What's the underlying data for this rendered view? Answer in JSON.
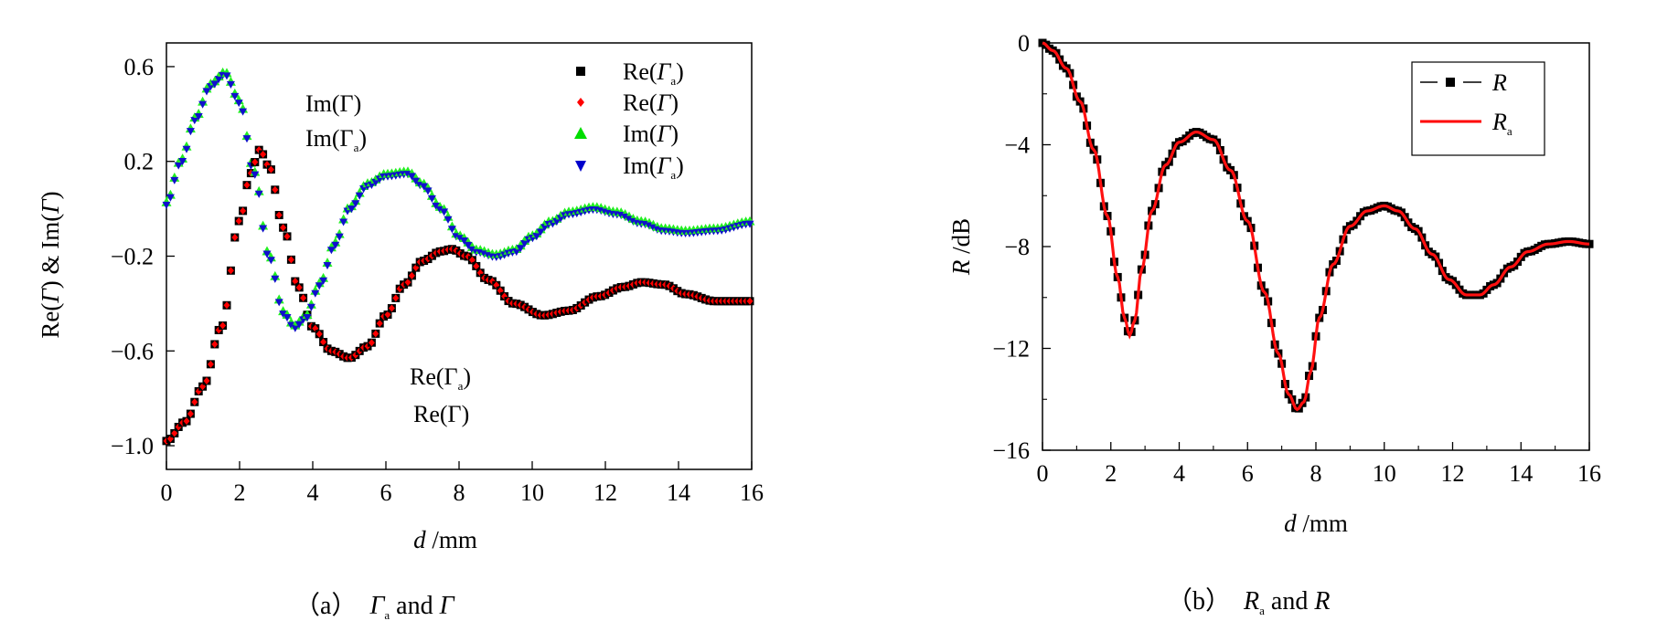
{
  "chart_data": [
    {
      "type": "scatter",
      "panel": "a",
      "caption": {
        "prefix": "（a）",
        "sym1": "Γ",
        "sym1_sub": "a",
        "mid": " and ",
        "sym2": "Γ"
      },
      "xlabel": {
        "sym": "d",
        "unit": " /mm"
      },
      "ylabel": {
        "p1": "Re(",
        "s1": "Γ",
        "p2": ")  & Im(",
        "s2": "Γ",
        "p3": ")"
      },
      "xlim": [
        0,
        16
      ],
      "ylim": [
        -1.1,
        0.7
      ],
      "xticks": [
        "0",
        "2",
        "4",
        "6",
        "8",
        "10",
        "12",
        "14",
        "16"
      ],
      "yticks": [
        {
          "v": 0.6,
          "label": "0.6"
        },
        {
          "v": 0.2,
          "label": "0.2"
        },
        {
          "v": -0.2,
          "label": "−0.2"
        },
        {
          "v": -0.6,
          "label": "−0.6"
        },
        {
          "v": -1.0,
          "label": "−1.0"
        }
      ],
      "legend": [
        {
          "name_pre": "Re(",
          "name_sym": "Γ",
          "name_sub": "a",
          "name_post": ")",
          "marker": "square",
          "color": "#000000"
        },
        {
          "name_pre": "Re(",
          "name_sym": "Γ",
          "name_sub": "",
          "name_post": ")",
          "marker": "diamond",
          "color": "#ff0000"
        },
        {
          "name_pre": "Im(",
          "name_sym": "Γ",
          "name_sub": "",
          "name_post": ")",
          "marker": "triangle-up",
          "color": "#00dd00"
        },
        {
          "name_pre": "Im(",
          "name_sym": "Γ",
          "name_sub": "a",
          "name_post": ")",
          "marker": "triangle-down",
          "color": "#0000cc"
        }
      ],
      "annotations": {
        "im_line1": "Im(Γ)",
        "im_line2": "Im(Γ",
        "im_line2_sub": "a",
        "re_line1": "Re(Γ",
        "re_line1_sub": "a",
        "re_line2": "Re(Γ)"
      },
      "series": [
        {
          "name": "Re",
          "x": [
            0,
            0.5,
            1,
            1.5,
            2,
            2.3,
            2.55,
            2.8,
            3.2,
            3.6,
            4,
            4.5,
            5,
            5.5,
            6,
            6.5,
            7,
            7.5,
            7.8,
            8.2,
            8.8,
            9.5,
            10.3,
            11,
            11.8,
            12.5,
            13,
            13.6,
            14.2,
            15,
            16
          ],
          "y": [
            -0.98,
            -0.9,
            -0.75,
            -0.5,
            -0.05,
            0.15,
            0.25,
            0.18,
            -0.08,
            -0.33,
            -0.5,
            -0.6,
            -0.63,
            -0.58,
            -0.45,
            -0.32,
            -0.22,
            -0.18,
            -0.17,
            -0.2,
            -0.3,
            -0.4,
            -0.45,
            -0.43,
            -0.37,
            -0.33,
            -0.31,
            -0.32,
            -0.36,
            -0.39,
            -0.39
          ]
        },
        {
          "name": "Im",
          "x": [
            0,
            0.4,
            0.8,
            1.2,
            1.6,
            2,
            2.4,
            2.8,
            3.2,
            3.5,
            3.8,
            4.2,
            4.6,
            5,
            5.5,
            6,
            6.6,
            7,
            7.5,
            8,
            8.5,
            9,
            9.5,
            10,
            10.5,
            11,
            11.7,
            12.3,
            13,
            13.6,
            14.2,
            15,
            16
          ],
          "y": [
            0.02,
            0.2,
            0.38,
            0.52,
            0.57,
            0.45,
            0.15,
            -0.2,
            -0.44,
            -0.5,
            -0.46,
            -0.32,
            -0.15,
            0.0,
            0.1,
            0.14,
            0.15,
            0.1,
            0.0,
            -0.12,
            -0.18,
            -0.2,
            -0.18,
            -0.12,
            -0.06,
            -0.02,
            0.0,
            -0.02,
            -0.06,
            -0.09,
            -0.1,
            -0.09,
            -0.06
          ]
        }
      ]
    },
    {
      "type": "line",
      "panel": "b",
      "caption": {
        "prefix": "（b）",
        "sym1": "R",
        "sym1_sub": "a",
        "mid": " and ",
        "sym2": "R"
      },
      "xlabel": {
        "sym": "d",
        "unit": " /mm"
      },
      "ylabel": {
        "sym": "R",
        "unit": " /dB"
      },
      "xlim": [
        0,
        16
      ],
      "ylim": [
        -16,
        0
      ],
      "xticks": [
        "0",
        "2",
        "4",
        "6",
        "8",
        "10",
        "12",
        "14",
        "16"
      ],
      "yticks": [
        {
          "v": 0,
          "label": "0"
        },
        {
          "v": -4,
          "label": "−4"
        },
        {
          "v": -8,
          "label": "−8"
        },
        {
          "v": -12,
          "label": "−12"
        },
        {
          "v": -16,
          "label": "−16"
        }
      ],
      "legend": [
        {
          "name_sym": "R",
          "name_sub": "",
          "style": "dashed-square",
          "color": "#000000"
        },
        {
          "name_sym": "R",
          "name_sub": "a",
          "style": "solid",
          "color": "#ff0000"
        }
      ],
      "series": [
        {
          "name": "R",
          "x": [
            0,
            0.3,
            0.7,
            1.1,
            1.5,
            1.9,
            2.2,
            2.4,
            2.55,
            2.7,
            2.9,
            3.2,
            3.6,
            4.0,
            4.5,
            5.0,
            5.5,
            6.0,
            6.5,
            6.9,
            7.2,
            7.45,
            7.65,
            7.85,
            8.1,
            8.5,
            9.0,
            9.5,
            10.0,
            10.4,
            10.9,
            11.4,
            11.9,
            12.4,
            12.8,
            13.2,
            13.7,
            14.2,
            14.8,
            15.4,
            16
          ],
          "y": [
            0,
            -0.3,
            -1.0,
            -2.3,
            -4.2,
            -6.8,
            -9.2,
            -10.8,
            -11.5,
            -10.9,
            -8.9,
            -6.6,
            -4.8,
            -3.9,
            -3.5,
            -3.8,
            -5.0,
            -7.0,
            -9.8,
            -12.2,
            -13.8,
            -14.4,
            -14.1,
            -12.9,
            -10.8,
            -8.7,
            -7.2,
            -6.6,
            -6.4,
            -6.6,
            -7.3,
            -8.3,
            -9.3,
            -9.9,
            -9.9,
            -9.5,
            -8.8,
            -8.2,
            -7.9,
            -7.8,
            -7.9
          ]
        }
      ]
    }
  ]
}
